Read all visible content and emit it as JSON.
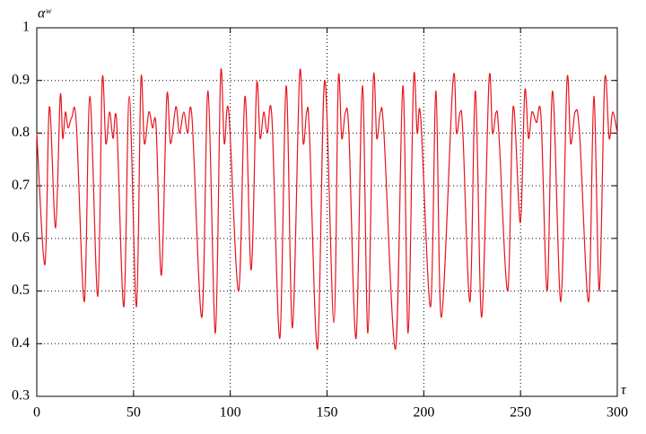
{
  "chart_data": {
    "type": "line",
    "xlabel": "τ",
    "ylabel": "αʷ",
    "x": [
      0,
      4.2,
      6.5,
      9.7,
      12.1,
      13.4,
      14.8,
      16.2,
      18.1,
      20.4,
      24.6,
      27.4,
      31.5,
      33.8,
      35.7,
      37.6,
      39.4,
      41.3,
      45,
      47.8,
      51.5,
      53.8,
      55.6,
      57.9,
      59.8,
      61.7,
      64.4,
      67.2,
      69.1,
      71.9,
      73.7,
      76,
      77.9,
      80.2,
      85.3,
      88.5,
      92.3,
      95,
      96.9,
      99.2,
      104.3,
      107.6,
      110.8,
      113.6,
      115.4,
      117.3,
      119.1,
      121.5,
      125.6,
      128.9,
      132.1,
      135.8,
      137.7,
      139.5,
      140.9,
      145.1,
      148.8,
      153.5,
      155.8,
      157.6,
      159.5,
      161.3,
      165,
      168.3,
      171.1,
      173.9,
      175.7,
      177.6,
      179.4,
      185.4,
      189.2,
      191.9,
      194.7,
      196.6,
      198.4,
      203.5,
      206.3,
      209.1,
      215.1,
      216.9,
      218.8,
      220.2,
      223.9,
      226.7,
      229.9,
      233.7,
      235.5,
      237.4,
      238.8,
      243.4,
      246.2,
      249.9,
      252.2,
      254.1,
      255.9,
      258.2,
      260.6,
      263.8,
      266.6,
      270.8,
      274,
      275.9,
      278.2,
      280.5,
      285.2,
      287.9,
      290.7,
      293.5,
      295.8,
      297.6,
      300
    ],
    "series": [
      {
        "color": "#e8141e",
        "values": [
          0.8,
          0.55,
          0.85,
          0.62,
          0.87,
          0.79,
          0.84,
          0.81,
          0.83,
          0.82,
          0.48,
          0.87,
          0.49,
          0.9,
          0.78,
          0.84,
          0.79,
          0.82,
          0.47,
          0.87,
          0.47,
          0.9,
          0.78,
          0.84,
          0.81,
          0.81,
          0.53,
          0.87,
          0.78,
          0.85,
          0.8,
          0.84,
          0.8,
          0.83,
          0.45,
          0.88,
          0.42,
          0.91,
          0.78,
          0.84,
          0.5,
          0.87,
          0.54,
          0.89,
          0.79,
          0.84,
          0.8,
          0.83,
          0.41,
          0.89,
          0.43,
          0.91,
          0.78,
          0.84,
          0.8,
          0.39,
          0.9,
          0.44,
          0.9,
          0.79,
          0.84,
          0.8,
          0.41,
          0.89,
          0.42,
          0.9,
          0.79,
          0.84,
          0.8,
          0.39,
          0.89,
          0.42,
          0.9,
          0.8,
          0.83,
          0.47,
          0.88,
          0.45,
          0.9,
          0.8,
          0.84,
          0.8,
          0.48,
          0.88,
          0.45,
          0.9,
          0.8,
          0.84,
          0.8,
          0.5,
          0.85,
          0.63,
          0.88,
          0.79,
          0.84,
          0.82,
          0.83,
          0.5,
          0.88,
          0.48,
          0.9,
          0.78,
          0.84,
          0.8,
          0.48,
          0.87,
          0.5,
          0.9,
          0.79,
          0.84,
          0.8
        ]
      }
    ],
    "xlim": [
      0,
      300
    ],
    "xticks": [
      0,
      50,
      100,
      150,
      200,
      250,
      300
    ],
    "ylim": [
      0.3,
      1
    ],
    "yticks": [
      0.3,
      0.4,
      0.5,
      0.6,
      0.7,
      0.8,
      0.9,
      1
    ],
    "grid": true
  }
}
